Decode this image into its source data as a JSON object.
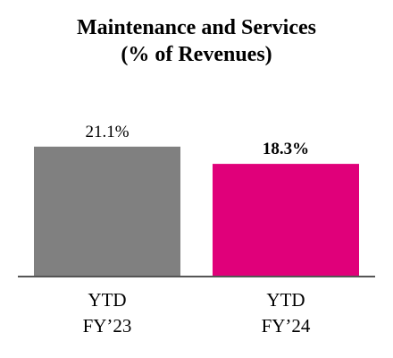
{
  "chart_data": {
    "type": "bar",
    "title": [
      "Maintenance and Services",
      "(% of Revenues)"
    ],
    "categories": [
      [
        "YTD",
        "FY’23"
      ],
      [
        "YTD",
        "FY’24"
      ]
    ],
    "values": [
      21.1,
      18.3
    ],
    "value_labels": [
      "21.1%",
      "18.3%"
    ],
    "value_label_bold": [
      false,
      true
    ],
    "colors": [
      "#808080",
      "#e0007a"
    ],
    "ylim": [
      0,
      25
    ],
    "grid": false,
    "legend": "none"
  }
}
